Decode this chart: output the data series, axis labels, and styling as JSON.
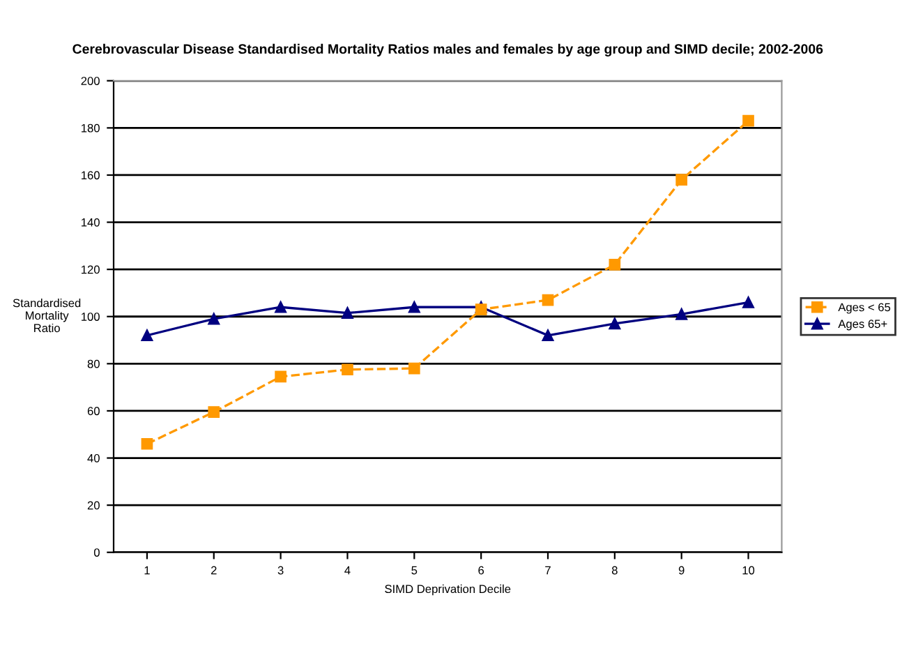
{
  "chart_data": {
    "type": "line",
    "title": "Cerebrovascular Disease Standardised Mortality Ratios males and females by age group and SIMD decile; 2002-2006",
    "xlabel": "SIMD Deprivation Decile",
    "ylabel": "Standardised\nMortality\nRatio",
    "categories": [
      "1",
      "2",
      "3",
      "4",
      "5",
      "6",
      "7",
      "8",
      "9",
      "10"
    ],
    "series": [
      {
        "name": "Ages < 65",
        "color": "#ff9900",
        "marker": "square",
        "line_style": "dashed",
        "values": [
          46,
          59.5,
          74.5,
          77.5,
          78,
          103,
          107,
          122,
          158,
          183
        ]
      },
      {
        "name": "Ages 65+",
        "color": "#000080",
        "marker": "triangle",
        "line_style": "solid",
        "values": [
          92,
          99,
          104,
          101.5,
          104,
          104,
          92,
          97,
          101,
          106
        ]
      }
    ],
    "ylim": [
      0,
      200
    ],
    "yticks": [
      0,
      20,
      40,
      60,
      80,
      100,
      120,
      140,
      160,
      180,
      200
    ],
    "grid": "y",
    "legend": "right"
  }
}
